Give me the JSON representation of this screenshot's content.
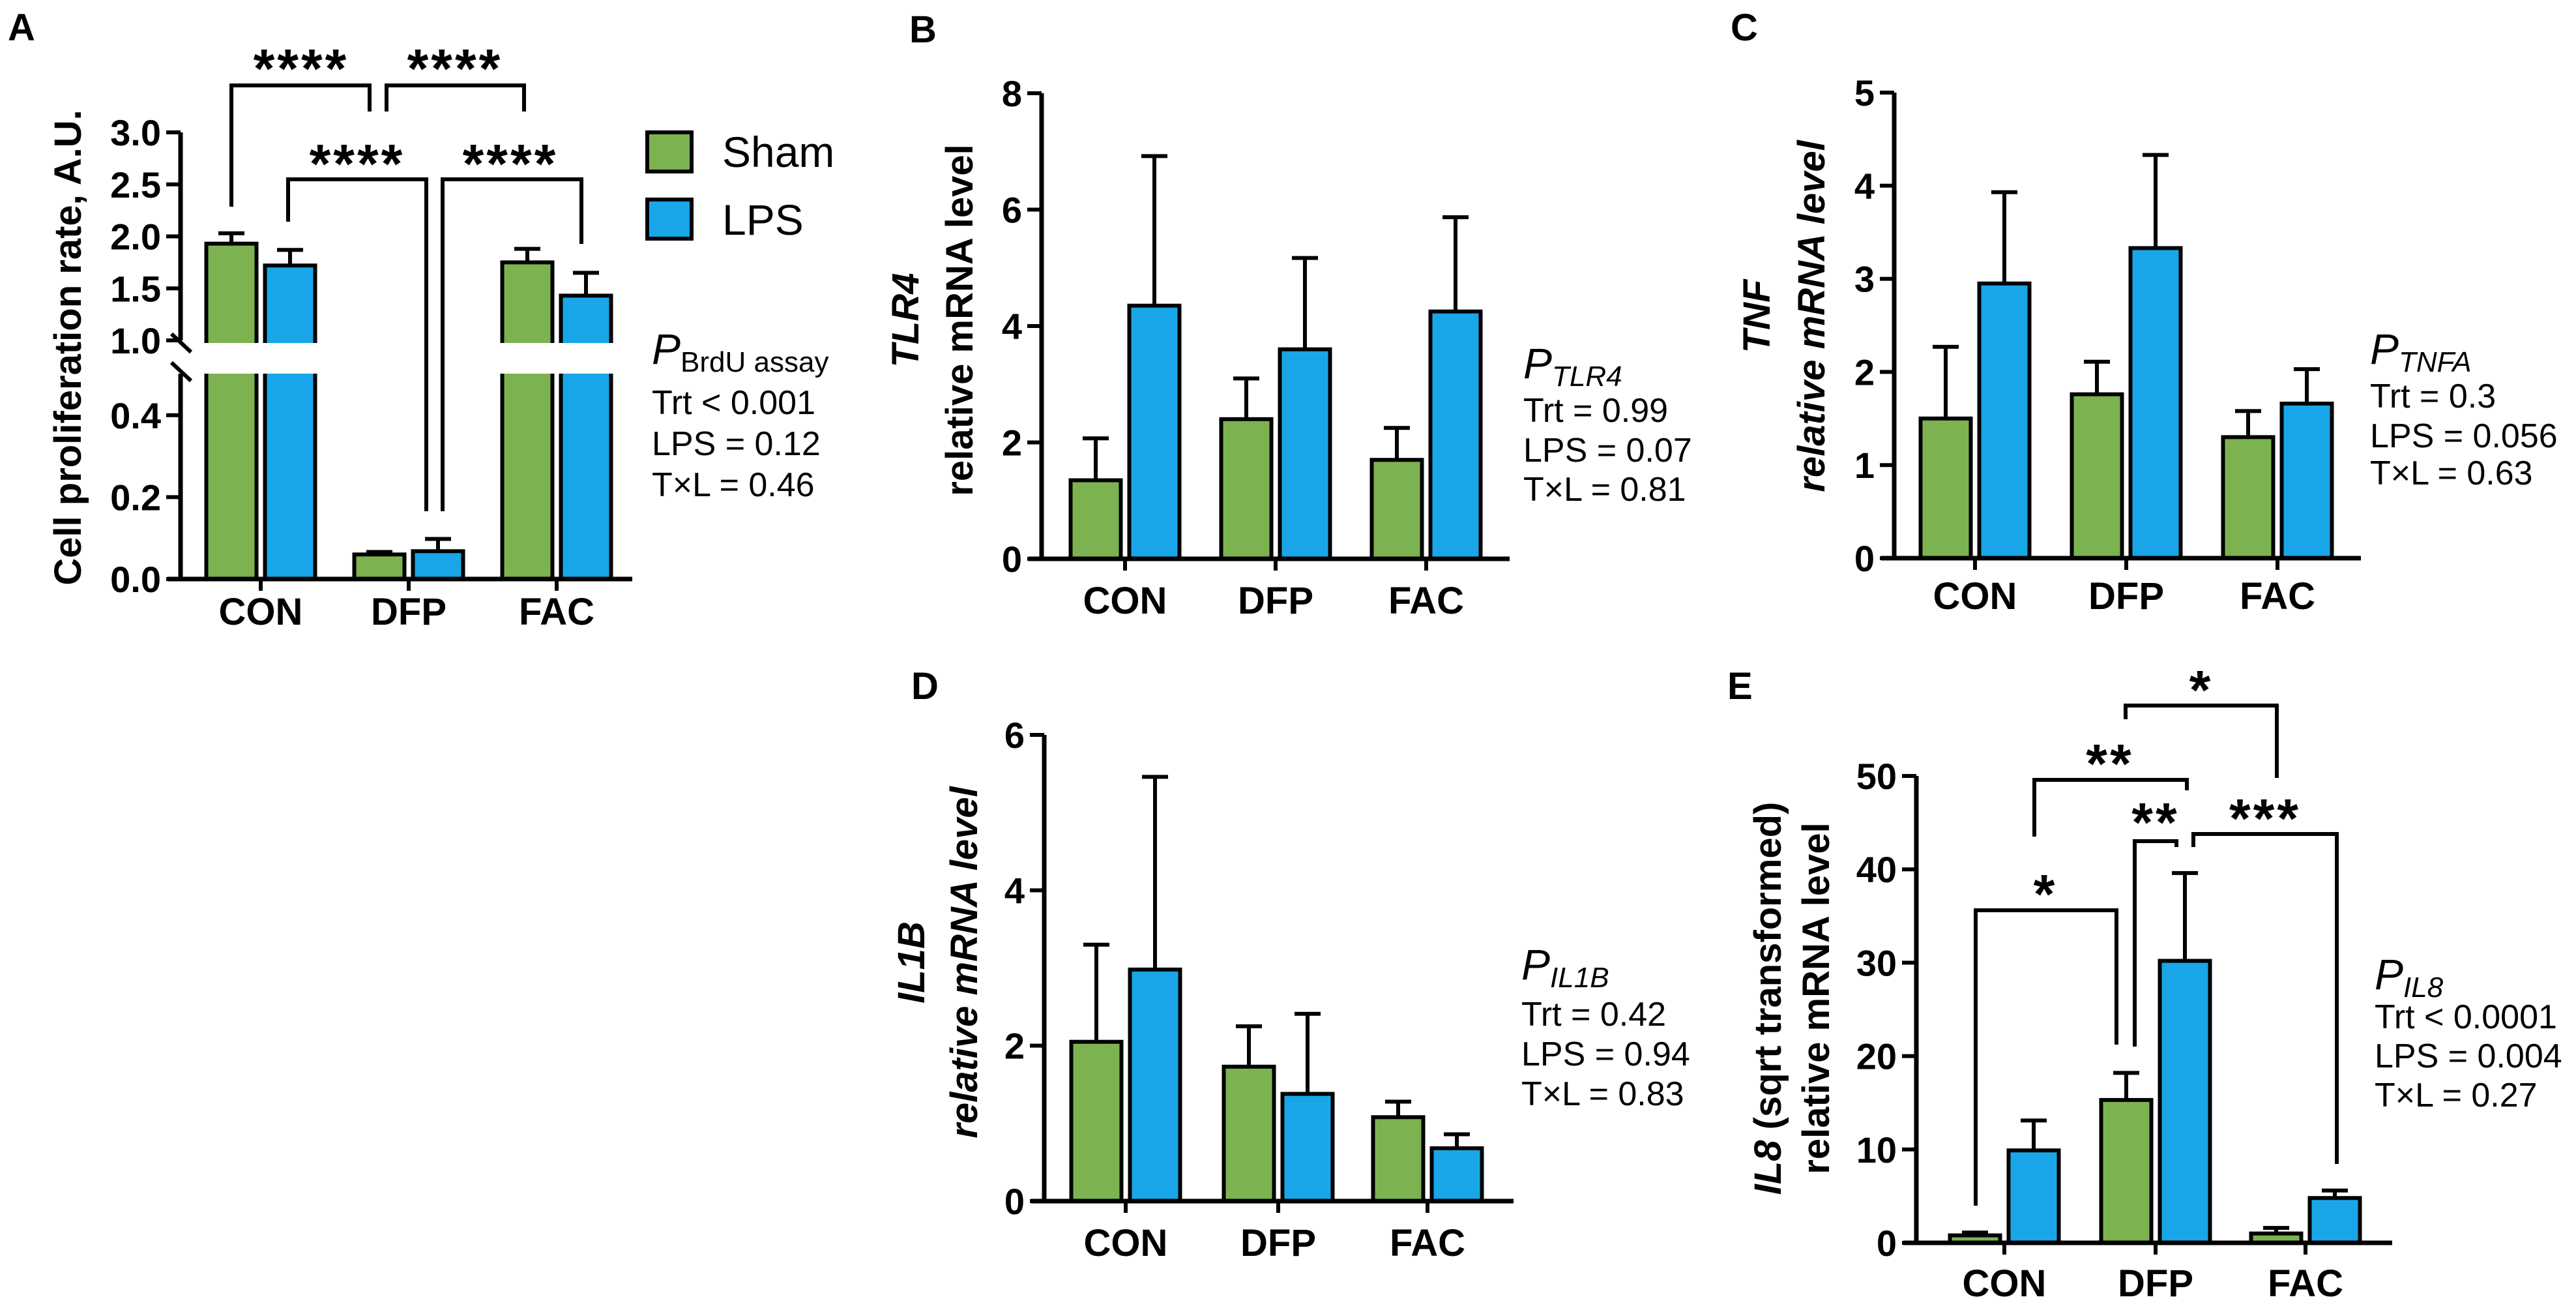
{
  "legend": {
    "items": [
      {
        "label": "Sham",
        "color": "#7cb350"
      },
      {
        "label": "LPS",
        "color": "#19a6e9"
      }
    ]
  },
  "chart_data": [
    {
      "panel": "A",
      "type": "bar",
      "categories": [
        "CON",
        "DFP",
        "FAC"
      ],
      "ylabel": [
        [
          {
            "text": "Cell proliferation rate, A.U.",
            "italic": false
          }
        ]
      ],
      "yticks": [
        "0.0",
        "0.2",
        "0.4",
        "1.0",
        "1.5",
        "2.0",
        "2.5",
        "3.0"
      ],
      "ylim": [
        0,
        3.0
      ],
      "axis_break": [
        0.5,
        1.0
      ],
      "series": [
        {
          "name": "Sham",
          "values": [
            1.93,
            0.06,
            1.75
          ],
          "sem": [
            0.1,
            0.006,
            0.13
          ]
        },
        {
          "name": "LPS",
          "values": [
            1.72,
            0.068,
            1.43
          ],
          "sem": [
            0.15,
            0.03,
            0.22
          ]
        }
      ],
      "stats": {
        "p": "P",
        "p_sub": "BrdU assay",
        "sub_italic": false,
        "lines": [
          "Trt < 0.001",
          "LPS = 0.12",
          "T×L = 0.46"
        ]
      },
      "comparisons": [
        {
          "label": "****",
          "from": "CON Sham",
          "to": "DFP Sham"
        },
        {
          "label": "****",
          "from": "DFP Sham",
          "to": "FAC Sham"
        },
        {
          "label": "****",
          "from": "CON LPS",
          "to": "DFP LPS"
        },
        {
          "label": "****",
          "from": "DFP LPS",
          "to": "FAC LPS"
        }
      ]
    },
    {
      "panel": "B",
      "type": "bar",
      "categories": [
        "CON",
        "DFP",
        "FAC"
      ],
      "ylabel": [
        [
          {
            "text": "TLR4",
            "italic": true
          }
        ],
        [
          {
            "text": "relative mRNA level",
            "italic": false
          }
        ]
      ],
      "yticks": [
        "0",
        "2",
        "4",
        "6",
        "8"
      ],
      "ylim": [
        0,
        8
      ],
      "series": [
        {
          "name": "Sham",
          "values": [
            1.35,
            2.4,
            1.7
          ],
          "sem": [
            0.72,
            0.7,
            0.55
          ]
        },
        {
          "name": "LPS",
          "values": [
            4.35,
            3.6,
            4.25
          ],
          "sem": [
            2.57,
            1.57,
            1.62
          ]
        }
      ],
      "stats": {
        "p": "P",
        "p_sub": "TLR4",
        "sub_italic": true,
        "lines": [
          "Trt = 0.99",
          "LPS = 0.07",
          "T×L = 0.81"
        ]
      },
      "comparisons": []
    },
    {
      "panel": "C",
      "type": "bar",
      "categories": [
        "CON",
        "DFP",
        "FAC"
      ],
      "ylabel": [
        [
          {
            "text": "TNF",
            "italic": true
          }
        ],
        [
          {
            "text": "relative mRNA level",
            "italic": true
          }
        ]
      ],
      "yticks": [
        "0",
        "1",
        "2",
        "3",
        "4",
        "5"
      ],
      "ylim": [
        0,
        5
      ],
      "series": [
        {
          "name": "Sham",
          "values": [
            1.5,
            1.76,
            1.3
          ],
          "sem": [
            0.77,
            0.35,
            0.28
          ]
        },
        {
          "name": "LPS",
          "values": [
            2.95,
            3.33,
            1.66
          ],
          "sem": [
            0.98,
            1.0,
            0.37
          ]
        }
      ],
      "stats": {
        "p": "P",
        "p_sub": "TNFA",
        "sub_italic": true,
        "lines": [
          "Trt = 0.3",
          "LPS = 0.056",
          "T×L = 0.63"
        ]
      },
      "comparisons": []
    },
    {
      "panel": "D",
      "type": "bar",
      "categories": [
        "CON",
        "DFP",
        "FAC"
      ],
      "ylabel": [
        [
          {
            "text": "IL1B",
            "italic": true
          }
        ],
        [
          {
            "text": "relative mRNA level",
            "italic": true
          }
        ]
      ],
      "yticks": [
        "0",
        "2",
        "4",
        "6"
      ],
      "ylim": [
        0,
        6
      ],
      "series": [
        {
          "name": "Sham",
          "values": [
            2.05,
            1.73,
            1.08
          ],
          "sem": [
            1.25,
            0.52,
            0.2
          ]
        },
        {
          "name": "LPS",
          "values": [
            2.98,
            1.38,
            0.68
          ],
          "sem": [
            2.48,
            1.03,
            0.18
          ]
        }
      ],
      "stats": {
        "p": "P",
        "p_sub": "IL1B",
        "sub_italic": true,
        "lines": [
          "Trt = 0.42",
          "LPS = 0.94",
          "T×L = 0.83"
        ]
      },
      "comparisons": []
    },
    {
      "panel": "E",
      "type": "bar",
      "categories": [
        "CON",
        "DFP",
        "FAC"
      ],
      "ylabel": [
        [
          {
            "text": "IL8",
            "italic": true
          },
          {
            "text": " (sqrt transformed)",
            "italic": false
          }
        ],
        [
          {
            "text": "relative mRNA level",
            "italic": false
          }
        ]
      ],
      "yticks": [
        "0",
        "10",
        "20",
        "30",
        "40",
        "50"
      ],
      "ylim": [
        0,
        50
      ],
      "series": [
        {
          "name": "Sham",
          "values": [
            0.8,
            15.3,
            1.0
          ],
          "sem": [
            0.3,
            2.9,
            0.6
          ]
        },
        {
          "name": "LPS",
          "values": [
            9.9,
            30.2,
            4.8
          ],
          "sem": [
            3.2,
            9.4,
            0.8
          ]
        }
      ],
      "stats": {
        "p": "P",
        "p_sub": "IL8",
        "sub_italic": true,
        "lines": [
          "Trt < 0.0001",
          "LPS = 0.004",
          "T×L = 0.27"
        ]
      },
      "comparisons": [
        {
          "label": "*",
          "from": "DFP Sham",
          "to": "FAC Sham"
        },
        {
          "label": "**",
          "from": "CON LPS",
          "to": "DFP LPS"
        },
        {
          "label": "**",
          "from": "DFP Sham",
          "to": "DFP LPS"
        },
        {
          "label": "***",
          "from": "DFP LPS",
          "to": "FAC LPS"
        },
        {
          "label": "*",
          "from": "CON Sham",
          "to": "DFP Sham"
        }
      ]
    }
  ]
}
